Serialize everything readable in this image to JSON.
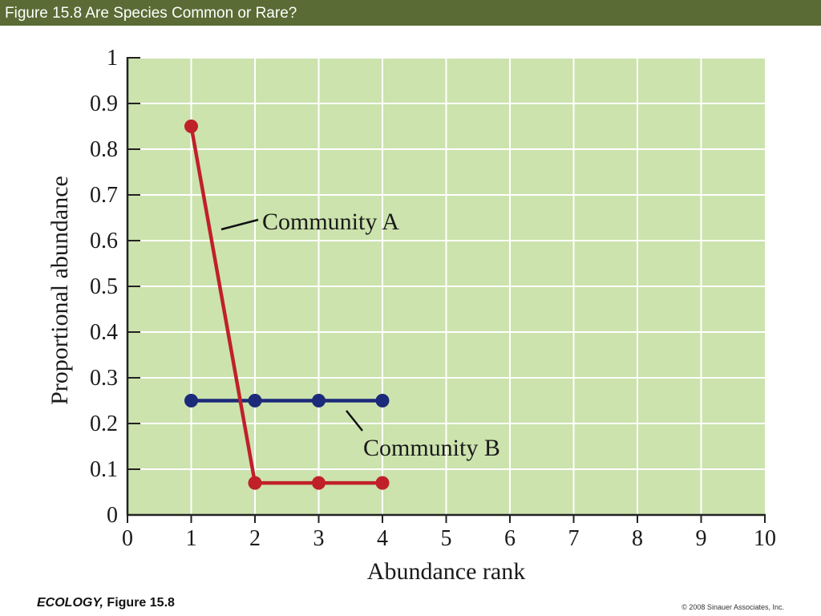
{
  "header": {
    "title": "Figure 15.8  Are Species Common or Rare?"
  },
  "footer": {
    "book": "ECOLOGY,",
    "figure": " Figure 15.8",
    "copyright": "© 2008 Sinauer Associates, Inc."
  },
  "colors": {
    "title_bar": "#5a6b35",
    "plot_background": "#cce3ad",
    "grid": "#ffffff",
    "community_a": "#c0202a",
    "community_b": "#1c2a7a"
  },
  "chart_data": {
    "type": "line",
    "title": "",
    "xlabel": "Abundance rank",
    "ylabel": "Proportional abundance",
    "xlim": [
      0,
      10
    ],
    "ylim": [
      0,
      1
    ],
    "x_ticks": [
      "0",
      "1",
      "2",
      "3",
      "4",
      "5",
      "6",
      "7",
      "8",
      "9",
      "10"
    ],
    "y_ticks": [
      "0",
      "0.1",
      "0.2",
      "0.3",
      "0.4",
      "0.5",
      "0.6",
      "0.7",
      "0.8",
      "0.9",
      "1"
    ],
    "grid": true,
    "series": [
      {
        "name": "Community A",
        "x": [
          1,
          2,
          3,
          4
        ],
        "y": [
          0.85,
          0.07,
          0.07,
          0.07
        ]
      },
      {
        "name": "Community B",
        "x": [
          1,
          2,
          3,
          4
        ],
        "y": [
          0.25,
          0.25,
          0.25,
          0.25
        ]
      }
    ]
  }
}
